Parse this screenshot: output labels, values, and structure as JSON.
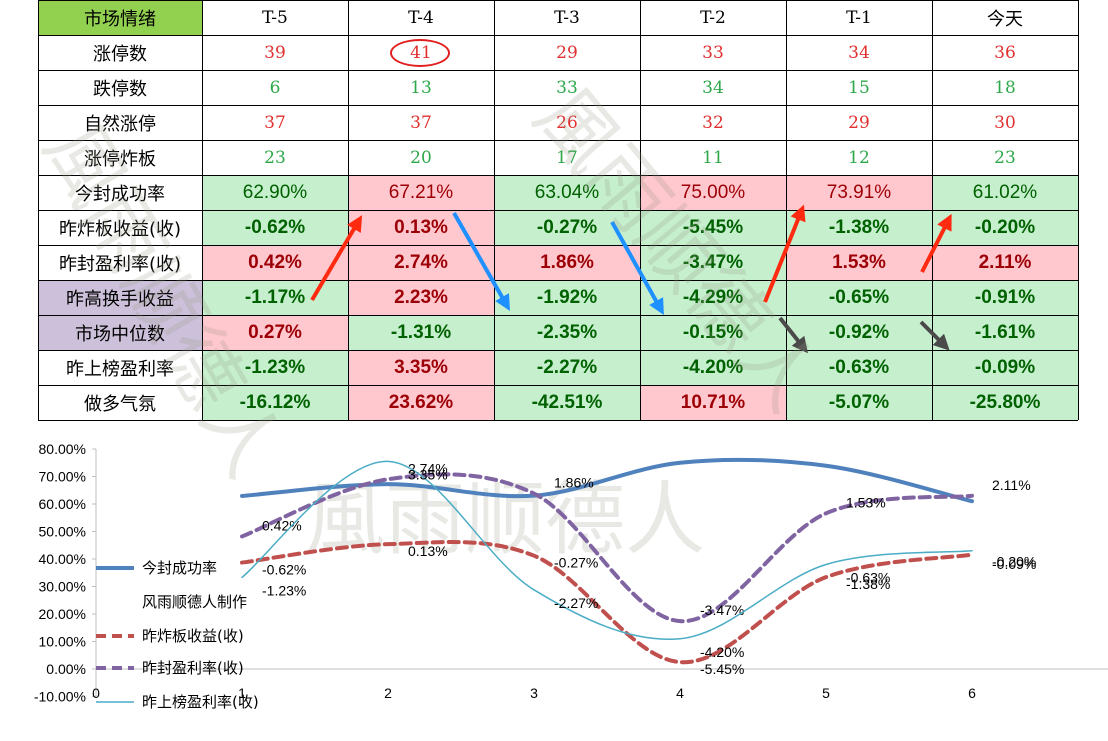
{
  "table": {
    "columns": [
      "市场情绪",
      "T-5",
      "T-4",
      "T-3",
      "T-2",
      "T-1",
      "今天"
    ],
    "rows": [
      {
        "label": "涨停数",
        "values": [
          "39",
          "41",
          "29",
          "33",
          "34",
          "36"
        ],
        "kind": "up",
        "circled_index": 1
      },
      {
        "label": "跌停数",
        "values": [
          "6",
          "13",
          "33",
          "34",
          "15",
          "18"
        ],
        "kind": "down"
      },
      {
        "label": "自然涨停",
        "values": [
          "37",
          "37",
          "26",
          "32",
          "29",
          "30"
        ],
        "kind": "up"
      },
      {
        "label": "涨停炸板",
        "values": [
          "23",
          "20",
          "17",
          "11",
          "12",
          "23"
        ],
        "kind": "down"
      },
      {
        "label": "今封成功率",
        "values": [
          "62.90%",
          "67.21%",
          "63.04%",
          "75.00%",
          "73.91%",
          "61.02%"
        ],
        "kind": "pct"
      },
      {
        "label": "昨炸板收益(收)",
        "values": [
          "-0.62%",
          "0.13%",
          "-0.27%",
          "-5.45%",
          "-1.38%",
          "-0.20%"
        ],
        "kind": "pct"
      },
      {
        "label": "昨封盈利率(收)",
        "values": [
          "0.42%",
          "2.74%",
          "1.86%",
          "-3.47%",
          "1.53%",
          "2.11%"
        ],
        "kind": "pct"
      },
      {
        "label": "昨高换手收益",
        "values": [
          "-1.17%",
          "2.23%",
          "-1.92%",
          "-4.29%",
          "-0.65%",
          "-0.91%"
        ],
        "kind": "pct",
        "label_bg": "#ccc0da"
      },
      {
        "label": "市场中位数",
        "values": [
          "0.27%",
          "-1.31%",
          "-2.35%",
          "-0.15%",
          "-0.92%",
          "-1.61%"
        ],
        "kind": "pct",
        "label_bg": "#ccc0da"
      },
      {
        "label": "昨上榜盈利率",
        "values": [
          "-1.23%",
          "3.35%",
          "-2.27%",
          "-4.20%",
          "-0.63%",
          "-0.09%"
        ],
        "kind": "pct"
      },
      {
        "label": "做多气氛",
        "values": [
          "-16.12%",
          "23.62%",
          "-42.51%",
          "10.71%",
          "-5.07%",
          "-25.80%"
        ],
        "kind": "pct"
      }
    ],
    "colors": {
      "header_green": "#92d050",
      "up_text": "#e03030",
      "down_text": "#2ea84a",
      "pos_bg": "#ffc7ce",
      "pos_text": "#9c0006",
      "neg_bg": "#c6efce",
      "neg_text": "#006100"
    }
  },
  "watermark_text": "風雨顺德人",
  "chart_data": {
    "type": "line",
    "x": [
      1,
      2,
      3,
      4,
      5,
      6
    ],
    "xlim": [
      0,
      7
    ],
    "ylim": [
      -10,
      80
    ],
    "x_ticks": [
      "0",
      "1",
      "2",
      "3",
      "4",
      "5",
      "6"
    ],
    "y_ticks": [
      "-10.00%",
      "0.00%",
      "10.00%",
      "20.00%",
      "30.00%",
      "40.00%",
      "50.00%",
      "60.00%",
      "70.00%",
      "80.00%"
    ],
    "smooth": true,
    "series": [
      {
        "name": "今封成功率",
        "values": [
          62.9,
          67.21,
          63.04,
          75.0,
          73.91,
          61.02
        ],
        "color": "#4f81bd",
        "style": "solid-thick",
        "labels": [
          "",
          "",
          "",
          "",
          "",
          ""
        ]
      },
      {
        "name": "昨炸板收益(收)",
        "values": [
          38.7,
          45.4,
          41.2,
          2.5,
          33.4,
          41.6
        ],
        "color": "#c0504d",
        "style": "dashed",
        "labels": [
          "-0.62%",
          "0.13%",
          "-0.27%",
          "-5.45%",
          "-1.38%",
          "-0.20%"
        ]
      },
      {
        "name": "昨封盈利率(收)",
        "values": [
          48.2,
          69.0,
          63.8,
          17.4,
          56.6,
          63.0
        ],
        "color": "#8064a2",
        "style": "dashed",
        "labels": [
          "0.42%",
          "2.74%",
          "1.86%",
          "-3.47%",
          "1.53%",
          "2.11%"
        ]
      },
      {
        "name": "昨上榜盈利率(收)",
        "values": [
          33.3,
          75.5,
          28.8,
          11.0,
          38.0,
          43.0
        ],
        "color": "#4bacc6",
        "style": "solid-thin",
        "labels": [
          "-1.23%",
          "3.35%",
          "-2.27%",
          "-4.20%",
          "-0.63%",
          "-0.09%"
        ]
      }
    ],
    "legend_extra": "风雨顺德人制作"
  }
}
